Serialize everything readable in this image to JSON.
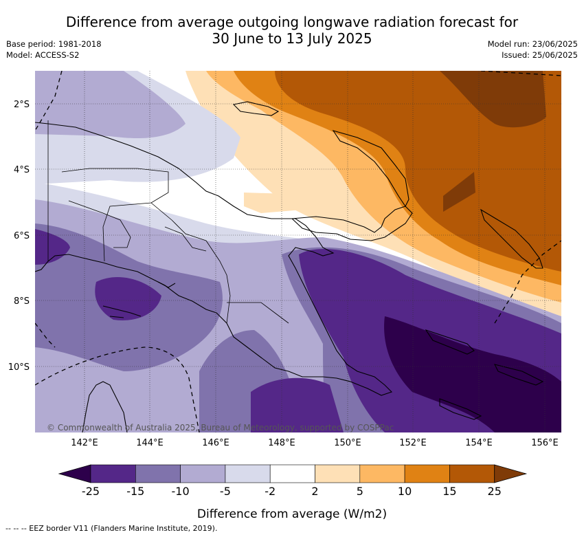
{
  "title": {
    "line1": "Difference from average outgoing longwave radiation forecast for",
    "line2": "30 June to 13 July 2025"
  },
  "meta_left": {
    "base_period": "Base period: 1981-2018",
    "model": "Model: ACCESS-S2"
  },
  "meta_right": {
    "model_run": "Model run: 23/06/2025",
    "issued": "Issued: 25/06/2025"
  },
  "axes": {
    "lat_labels": [
      "2°S",
      "4°S",
      "6°S",
      "8°S",
      "10°S"
    ],
    "lon_labels": [
      "142°E",
      "144°E",
      "146°E",
      "148°E",
      "150°E",
      "152°E",
      "154°E",
      "156°E"
    ]
  },
  "copyright": "© Commonwealth of Australia 2025, Bureau of Meteorology, supported by COSPPac",
  "colorbar": {
    "tick_labels": [
      "-25",
      "-15",
      "-10",
      "-5",
      "-2",
      "2",
      "5",
      "10",
      "15",
      "25"
    ],
    "colors": [
      "#2d004b",
      "#542788",
      "#8073ac",
      "#b2abd2",
      "#d8daeb",
      "#ffffff",
      "#fee0b6",
      "#fdb863",
      "#e08214",
      "#b35806",
      "#7f3b08"
    ],
    "label": "Difference from average (W/m2)"
  },
  "legend_note": "-- -- -- EEZ border V11 (Flanders Marine Institute, 2019)."
}
